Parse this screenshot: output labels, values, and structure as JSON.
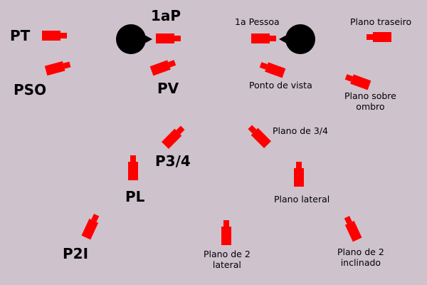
{
  "colors": {
    "background": "#cec2cd",
    "camera": "#ff0000",
    "subject_head": "#000000",
    "text": "#000000"
  },
  "icons": {
    "camera": "camera-icon",
    "subject": "head-icon"
  },
  "abbreviations": {
    "pt": "PT",
    "first_person": "1aP",
    "pso": "PSO",
    "pv": "PV",
    "p34": "P3/4",
    "pl": "PL",
    "p2i": "P2I"
  },
  "full_names": {
    "first_person": "1a Pessoa",
    "back_shot": "Plano traseiro",
    "point_of_view": "Ponto de vista",
    "over_shoulder_line1": "Plano sobre",
    "over_shoulder_line2": "ombro",
    "three_quarter": "Plano de 3/4",
    "lateral": "Plano lateral",
    "two_lateral_line1": "Plano de 2",
    "two_lateral_line2": "lateral",
    "two_inclined_line1": "Plano de 2",
    "two_inclined_line2": "inclinado"
  }
}
